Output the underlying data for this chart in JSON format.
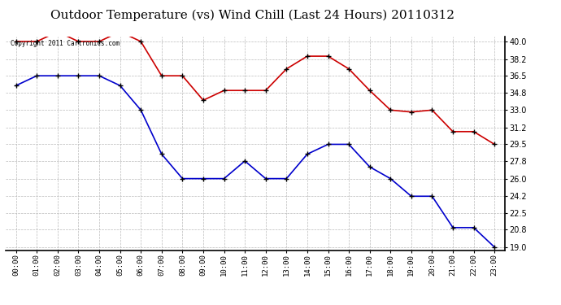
{
  "title": "Outdoor Temperature (vs) Wind Chill (Last 24 Hours) 20110312",
  "copyright_text": "Copyright 2011 Cartronics.com",
  "hours": [
    "00:00",
    "01:00",
    "02:00",
    "03:00",
    "04:00",
    "05:00",
    "06:00",
    "07:00",
    "08:00",
    "09:00",
    "10:00",
    "11:00",
    "12:00",
    "13:00",
    "14:00",
    "15:00",
    "16:00",
    "17:00",
    "18:00",
    "19:00",
    "20:00",
    "21:00",
    "22:00",
    "23:00"
  ],
  "temp_red": [
    40.0,
    40.0,
    41.0,
    40.0,
    40.0,
    41.0,
    40.0,
    36.5,
    36.5,
    34.0,
    35.0,
    35.0,
    35.0,
    37.2,
    38.5,
    38.5,
    37.2,
    35.0,
    33.0,
    32.8,
    33.0,
    30.8,
    30.8,
    29.5
  ],
  "temp_blue": [
    35.5,
    36.5,
    36.5,
    36.5,
    36.5,
    35.5,
    33.0,
    28.5,
    26.0,
    26.0,
    26.0,
    27.8,
    26.0,
    26.0,
    28.5,
    29.5,
    29.5,
    27.2,
    26.0,
    24.2,
    24.2,
    21.0,
    21.0,
    19.0
  ],
  "red_color": "#cc0000",
  "blue_color": "#0000cc",
  "background_color": "#ffffff",
  "grid_color": "#bbbbbb",
  "ylim_min": 19.0,
  "ylim_max": 40.0,
  "yticks": [
    19.0,
    20.8,
    22.5,
    24.2,
    26.0,
    27.8,
    29.5,
    31.2,
    33.0,
    34.8,
    36.5,
    38.2,
    40.0
  ],
  "title_fontsize": 11,
  "marker": "+",
  "marker_color": "#000000",
  "marker_size": 5,
  "marker_linewidth": 1.0,
  "line_width": 1.2
}
